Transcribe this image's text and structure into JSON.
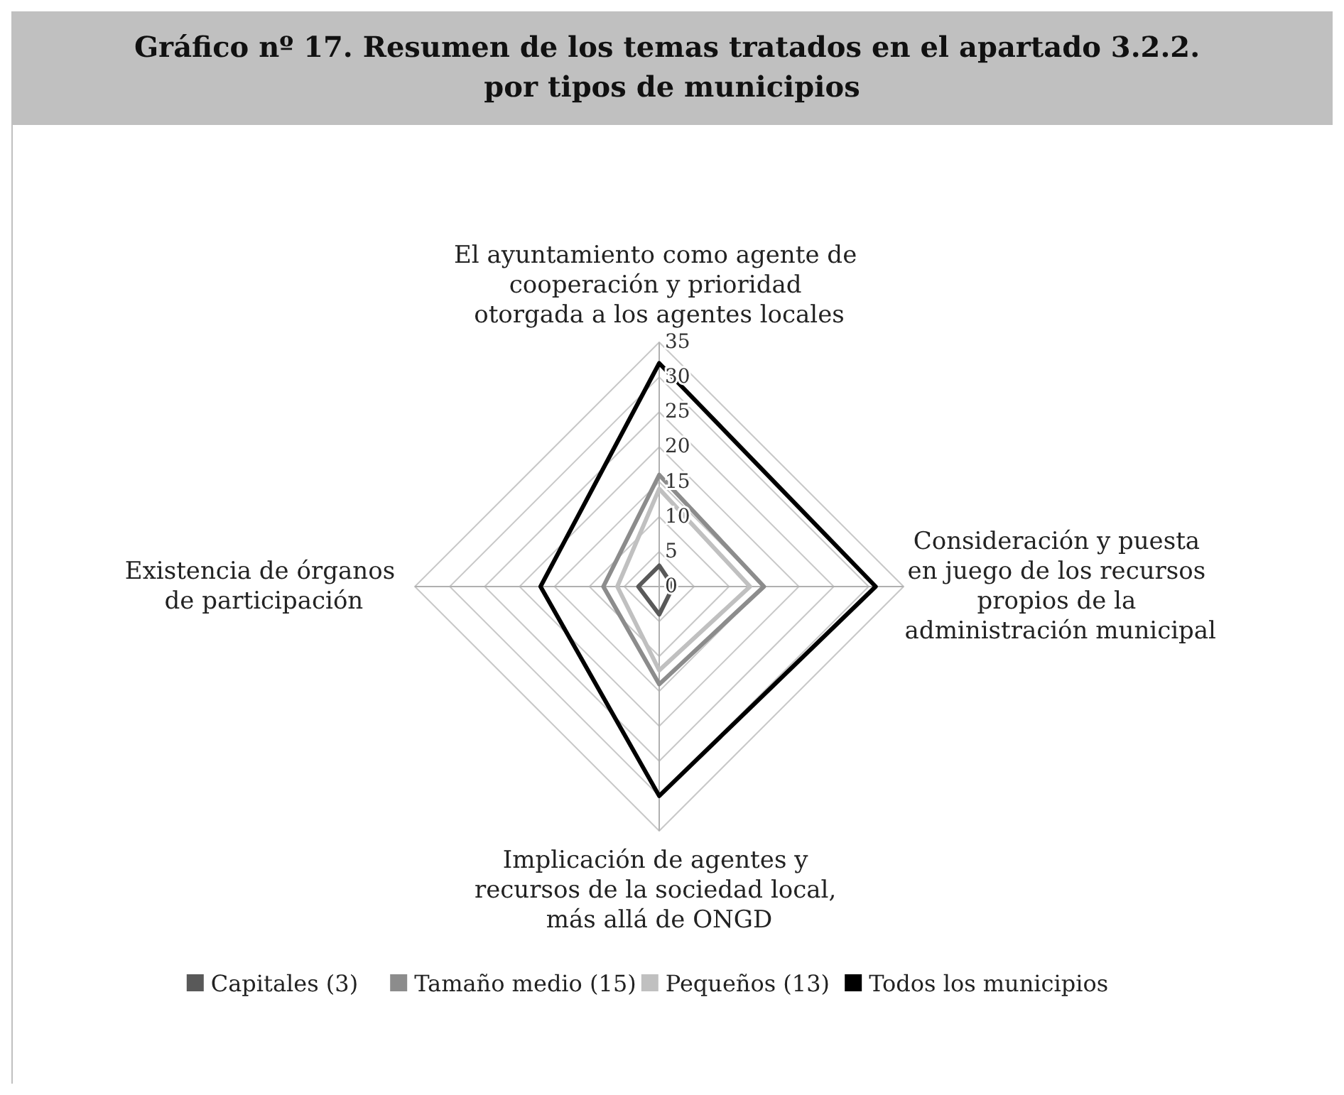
{
  "chart_data": {
    "type": "radar",
    "title": "Gráfico nº 17. Resumen de los temas tratados en el apartado 3.2.2. por tipos de municipios",
    "categories": [
      "El ayuntamiento como agente de cooperación y prioridad otorgada a los agentes locales",
      "Consideración y puesta en juego de los recursos propios de la administración municipal",
      "Implicación de agentes y recursos de la sociedad local, más allá de ONGD",
      "Existencia de órganos de participación"
    ],
    "series": [
      {
        "name": "Capitales (3)",
        "color": "#595959",
        "values": [
          3,
          2,
          4,
          3
        ]
      },
      {
        "name": "Tamaño medio (15)",
        "color": "#8c8c8c",
        "values": [
          16,
          15,
          14,
          8
        ]
      },
      {
        "name": "Pequeños (13)",
        "color": "#c0c0c0",
        "values": [
          14,
          13,
          12,
          6
        ]
      },
      {
        "name": "Todos los municipios",
        "color": "#000000",
        "values": [
          32,
          31,
          30,
          17
        ]
      }
    ],
    "ylim": [
      0,
      35
    ],
    "yticks": [
      0,
      5,
      10,
      15,
      20,
      25,
      30,
      35
    ],
    "grid": true,
    "legend": "bottom"
  }
}
